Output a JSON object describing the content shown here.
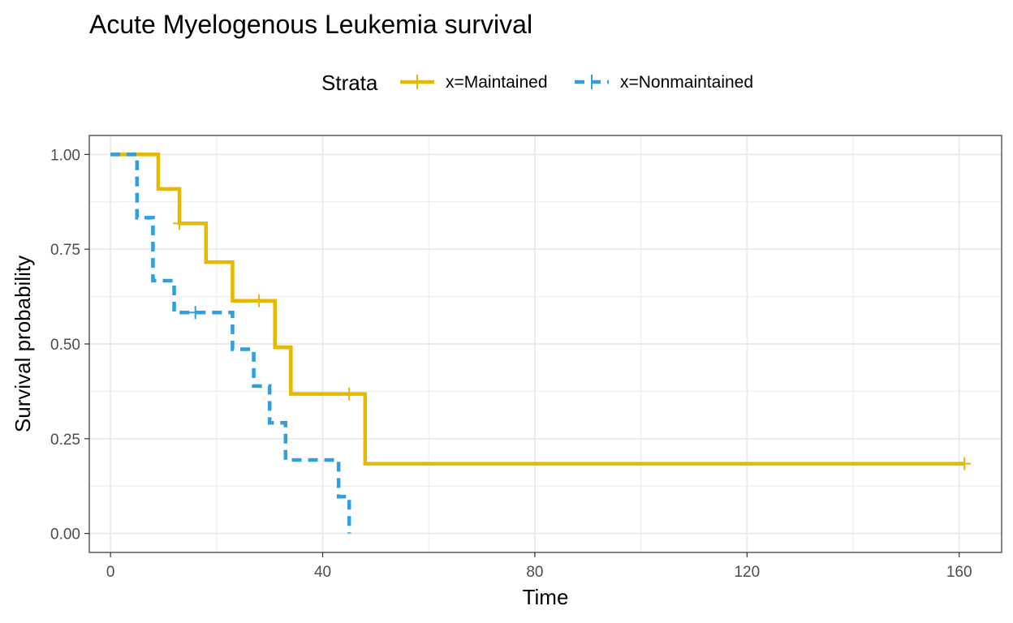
{
  "chart_data": {
    "type": "line",
    "subtype": "kaplan-meier-step",
    "title": "Acute Myelogenous Leukemia survival",
    "xlabel": "Time",
    "ylabel": "Survival probability",
    "xlim": [
      -4,
      168
    ],
    "ylim": [
      -0.05,
      1.05
    ],
    "x_ticks": [
      0,
      40,
      80,
      120,
      160
    ],
    "x_tick_labels": [
      "0",
      "40",
      "80",
      "120",
      "160"
    ],
    "y_ticks": [
      0,
      0.25,
      0.5,
      0.75,
      1.0
    ],
    "y_tick_labels": [
      "0.00",
      "0.25",
      "0.50",
      "0.75",
      "1.00"
    ],
    "grid": true,
    "legend": {
      "title": "Strata",
      "placement": "top"
    },
    "series": [
      {
        "name": "x=Maintained",
        "color": "#E7B800",
        "linestyle": "solid",
        "step": [
          [
            0,
            1.0
          ],
          [
            9,
            0.909
          ],
          [
            13,
            0.818
          ],
          [
            18,
            0.716
          ],
          [
            23,
            0.614
          ],
          [
            31,
            0.491
          ],
          [
            34,
            0.368
          ],
          [
            48,
            0.184
          ],
          [
            161,
            0.184
          ]
        ],
        "censored": [
          [
            13,
            0.818
          ],
          [
            28,
            0.614
          ],
          [
            45,
            0.368
          ],
          [
            161,
            0.184
          ]
        ]
      },
      {
        "name": "x=Nonmaintained",
        "color": "#2E9FDF",
        "linestyle": "dashed",
        "step": [
          [
            0,
            1.0
          ],
          [
            5,
            0.833
          ],
          [
            8,
            0.667
          ],
          [
            12,
            0.583
          ],
          [
            23,
            0.486
          ],
          [
            27,
            0.389
          ],
          [
            30,
            0.292
          ],
          [
            33,
            0.194
          ],
          [
            43,
            0.097
          ],
          [
            45,
            0.0
          ]
        ],
        "censored": [
          [
            16,
            0.583
          ]
        ]
      }
    ]
  }
}
